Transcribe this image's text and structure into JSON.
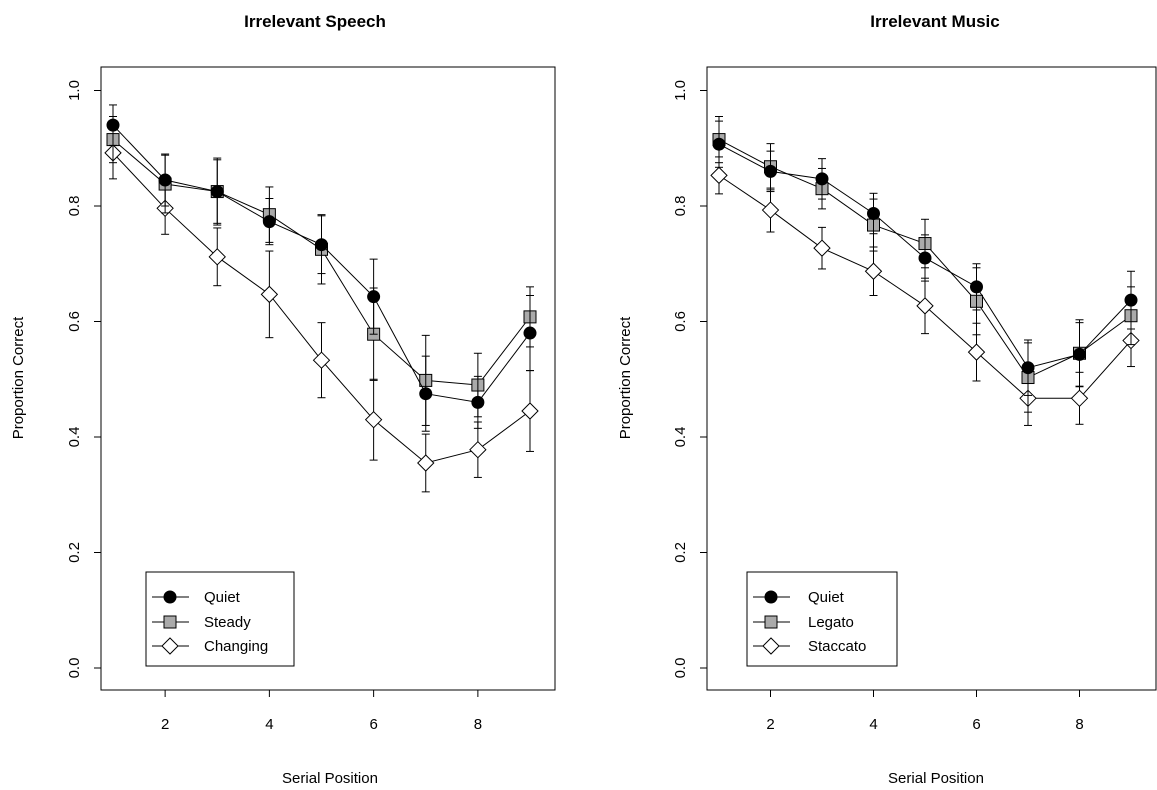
{
  "chart_data": [
    {
      "type": "line",
      "title": "Irrelevant Speech",
      "xlabel": "Serial Position",
      "ylabel": "Proportion Correct",
      "xlim": [
        0.5,
        9.5
      ],
      "ylim": [
        0.0,
        1.0
      ],
      "x_ticks": [
        "2",
        "4",
        "6",
        "8"
      ],
      "y_ticks": [
        "0.0",
        "0.2",
        "0.4",
        "0.6",
        "0.8",
        "1.0"
      ],
      "legend_position": "bottom-left",
      "x": [
        1,
        2,
        3,
        4,
        5,
        6,
        7,
        8,
        9
      ],
      "series": [
        {
          "name": "Quiet",
          "marker": "filled-circle",
          "color": "#000000",
          "values": [
            0.94,
            0.845,
            0.825,
            0.773,
            0.733,
            0.643,
            0.475,
            0.46,
            0.58
          ],
          "errors": [
            0.035,
            0.045,
            0.055,
            0.04,
            0.05,
            0.065,
            0.065,
            0.045,
            0.065
          ]
        },
        {
          "name": "Steady",
          "marker": "gray-square",
          "color": "#aaaaaa",
          "values": [
            0.915,
            0.838,
            0.825,
            0.785,
            0.725,
            0.578,
            0.498,
            0.49,
            0.608
          ],
          "errors": [
            0.04,
            0.05,
            0.058,
            0.048,
            0.06,
            0.08,
            0.078,
            0.055,
            0.052
          ]
        },
        {
          "name": "Changing",
          "marker": "open-diamond",
          "color": "#ffffff",
          "values": [
            0.892,
            0.796,
            0.712,
            0.647,
            0.533,
            0.43,
            0.355,
            0.378,
            0.445
          ],
          "errors": [
            0.045,
            0.045,
            0.05,
            0.075,
            0.065,
            0.07,
            0.05,
            0.048,
            0.07
          ]
        }
      ]
    },
    {
      "type": "line",
      "title": "Irrelevant Music",
      "xlabel": "Serial Position",
      "ylabel": "Proportion Correct",
      "xlim": [
        0.5,
        9.5
      ],
      "ylim": [
        0.0,
        1.0
      ],
      "x_ticks": [
        "2",
        "4",
        "6",
        "8"
      ],
      "y_ticks": [
        "0.0",
        "0.2",
        "0.4",
        "0.6",
        "0.8",
        "1.0"
      ],
      "legend_position": "bottom-left",
      "x": [
        1,
        2,
        3,
        4,
        5,
        6,
        7,
        8,
        9
      ],
      "series": [
        {
          "name": "Quiet",
          "marker": "filled-circle",
          "color": "#000000",
          "values": [
            0.907,
            0.86,
            0.847,
            0.787,
            0.71,
            0.66,
            0.52,
            0.543,
            0.637
          ],
          "errors": [
            0.04,
            0.035,
            0.035,
            0.035,
            0.04,
            0.04,
            0.048,
            0.055,
            0.05
          ]
        },
        {
          "name": "Legato",
          "marker": "gray-square",
          "color": "#aaaaaa",
          "values": [
            0.915,
            0.868,
            0.83,
            0.767,
            0.735,
            0.635,
            0.503,
            0.545,
            0.61
          ],
          "errors": [
            0.04,
            0.04,
            0.035,
            0.045,
            0.042,
            0.058,
            0.06,
            0.058,
            0.05
          ]
        },
        {
          "name": "Staccato",
          "marker": "open-diamond",
          "color": "#ffffff",
          "values": [
            0.853,
            0.793,
            0.727,
            0.687,
            0.627,
            0.547,
            0.467,
            0.467,
            0.567
          ],
          "errors": [
            0.032,
            0.038,
            0.036,
            0.042,
            0.048,
            0.05,
            0.047,
            0.045,
            0.045
          ]
        }
      ]
    }
  ]
}
